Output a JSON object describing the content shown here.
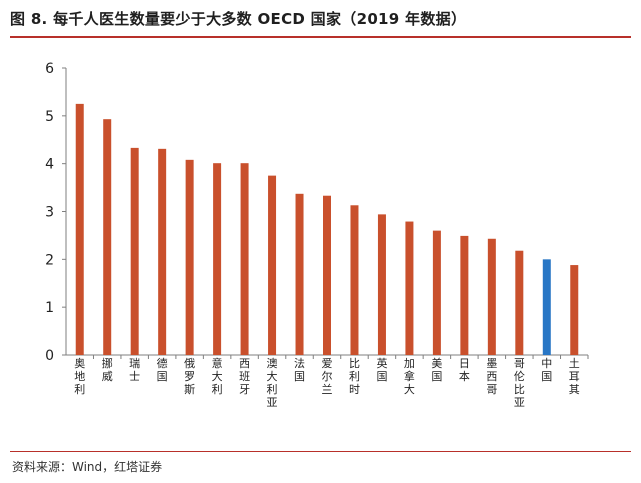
{
  "figure": {
    "title": "图 8. 每千人医生数量要少于大多数 OECD 国家（2019 年数据）",
    "source": "资料来源：Wind，红塔证券"
  },
  "colors": {
    "bar": "#c9502c",
    "highlight": "#2876c5",
    "axis": "#7f7f7f",
    "accent_rule": "#b8302a"
  },
  "chart_data": {
    "type": "bar",
    "title": "",
    "xlabel": "",
    "ylabel": "",
    "categories": [
      "奥地利",
      "挪威",
      "瑞士",
      "德国",
      "俄罗斯",
      "意大利",
      "西班牙",
      "澳大利亚",
      "法国",
      "爱尔兰",
      "比利时",
      "英国",
      "加拿大",
      "美国",
      "日本",
      "墨西哥",
      "哥伦比亚",
      "中国",
      "土耳其"
    ],
    "values": [
      5.25,
      4.93,
      4.33,
      4.31,
      4.08,
      4.01,
      4.01,
      3.75,
      3.37,
      3.33,
      3.13,
      2.94,
      2.79,
      2.6,
      2.49,
      2.43,
      2.18,
      2.0,
      1.88
    ],
    "highlight_category": "中国",
    "yticks": [
      0,
      1,
      2,
      3,
      4,
      5,
      6
    ],
    "ylim": [
      0,
      6
    ],
    "grid": false,
    "legend": "none"
  }
}
